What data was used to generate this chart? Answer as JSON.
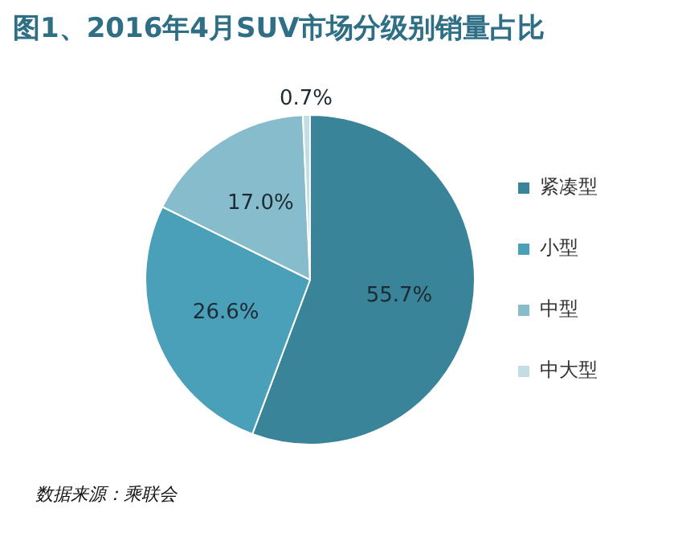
{
  "chart_data": {
    "type": "pie",
    "title": "图1、2016年4月SUV市场分级别销量占比",
    "categories": [
      "紧凑型",
      "小型",
      "中型",
      "中大型"
    ],
    "values": [
      55.7,
      26.6,
      17.0,
      0.7
    ],
    "colors": [
      "#3a8499",
      "#4aa0b8",
      "#86bccb",
      "#c3dde5"
    ],
    "value_labels": [
      "55.7%",
      "26.6%",
      "17.0%",
      "0.7%"
    ],
    "legend": "right",
    "annotations": [
      "数据来源：乘联会"
    ]
  }
}
